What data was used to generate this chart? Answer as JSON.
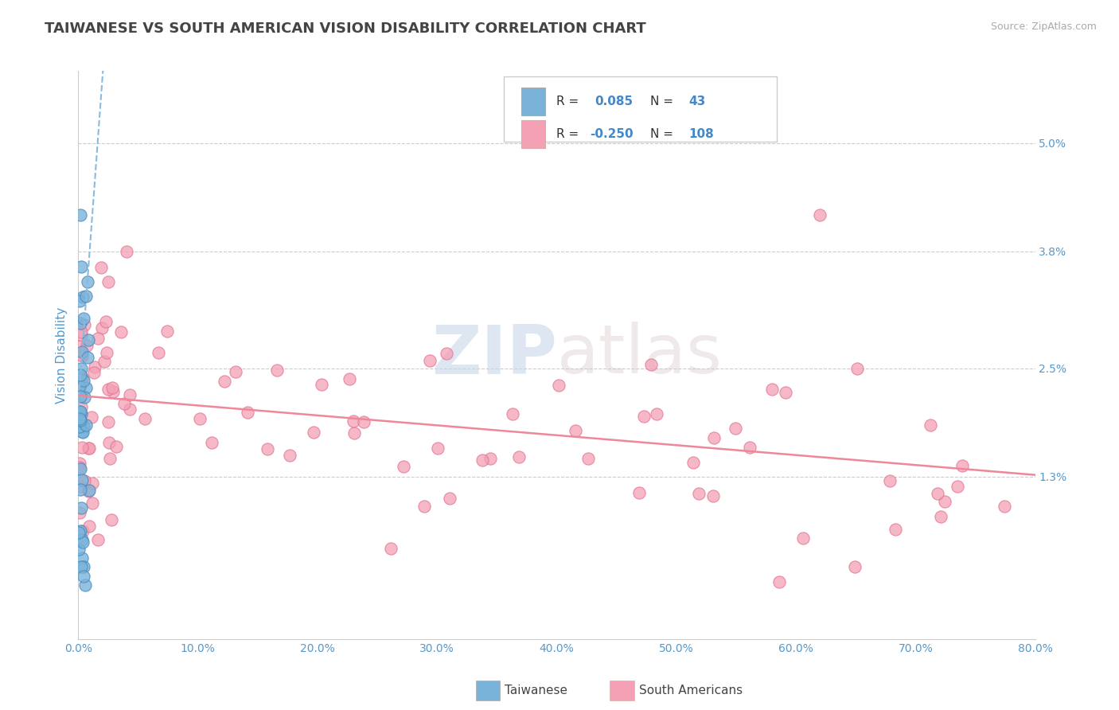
{
  "title": "TAIWANESE VS SOUTH AMERICAN VISION DISABILITY CORRELATION CHART",
  "source_text": "Source: ZipAtlas.com",
  "ylabel": "Vision Disability",
  "y_ticks": [
    0.013,
    0.025,
    0.038,
    0.05
  ],
  "y_tick_labels": [
    "1.3%",
    "2.5%",
    "3.8%",
    "5.0%"
  ],
  "x_min": 0.0,
  "x_max": 0.8,
  "y_min": -0.005,
  "y_max": 0.058,
  "watermark_zip": "ZIP",
  "watermark_atlas": "atlas",
  "legend_labels": [
    "Taiwanese",
    "South Americans"
  ],
  "taiwanese_color": "#7ab3d9",
  "south_american_color": "#f4a0b5",
  "taiwanese_R": 0.085,
  "taiwanese_N": 43,
  "south_american_R": -0.25,
  "south_american_N": 108,
  "background_color": "#ffffff",
  "grid_color": "#cccccc",
  "title_color": "#444444",
  "axis_label_color": "#5599cc",
  "tick_label_color": "#5599cc",
  "tw_trend_color": "#88bbdd",
  "sa_trend_color": "#ee8899",
  "x_ticks": [
    0.0,
    0.1,
    0.2,
    0.3,
    0.4,
    0.5,
    0.6,
    0.7,
    0.8
  ],
  "x_tick_labels": [
    "0.0%",
    "10.0%",
    "20.0%",
    "30.0%",
    "40.0%",
    "50.0%",
    "60.0%",
    "70.0%",
    "80.0%"
  ]
}
